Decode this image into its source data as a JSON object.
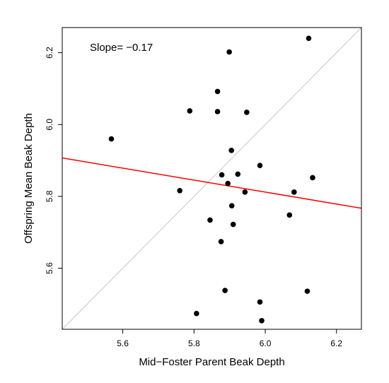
{
  "chart_data": {
    "type": "scatter",
    "title": "",
    "xlabel": "Mid−Foster Parent Beak Depth",
    "ylabel": "Offspring Mean Beak Depth",
    "xlim": [
      5.43,
      6.27
    ],
    "ylim": [
      5.43,
      6.27
    ],
    "xticks": [
      5.6,
      5.8,
      6.0,
      6.2
    ],
    "yticks": [
      5.6,
      5.8,
      6.0,
      6.2
    ],
    "xtick_labels": [
      "5.6",
      "5.8",
      "6.0",
      "6.2"
    ],
    "ytick_labels": [
      "5.6",
      "5.8",
      "6.0",
      "6.2"
    ],
    "annotation": "Slope= −0.17",
    "grid": false,
    "points": [
      {
        "x": 5.568,
        "y": 5.96
      },
      {
        "x": 5.76,
        "y": 5.816
      },
      {
        "x": 5.788,
        "y": 6.038
      },
      {
        "x": 5.807,
        "y": 5.474
      },
      {
        "x": 5.845,
        "y": 5.734
      },
      {
        "x": 5.866,
        "y": 6.092
      },
      {
        "x": 5.866,
        "y": 6.036
      },
      {
        "x": 5.876,
        "y": 5.674
      },
      {
        "x": 5.878,
        "y": 5.86
      },
      {
        "x": 5.887,
        "y": 5.538
      },
      {
        "x": 5.895,
        "y": 5.836
      },
      {
        "x": 5.899,
        "y": 6.202
      },
      {
        "x": 5.905,
        "y": 5.928
      },
      {
        "x": 5.906,
        "y": 5.774
      },
      {
        "x": 5.91,
        "y": 5.722
      },
      {
        "x": 5.923,
        "y": 5.862
      },
      {
        "x": 5.943,
        "y": 5.812
      },
      {
        "x": 5.948,
        "y": 6.034
      },
      {
        "x": 5.985,
        "y": 5.886
      },
      {
        "x": 5.985,
        "y": 5.506
      },
      {
        "x": 5.99,
        "y": 5.454
      },
      {
        "x": 6.068,
        "y": 5.748
      },
      {
        "x": 6.081,
        "y": 5.812
      },
      {
        "x": 6.118,
        "y": 5.536
      },
      {
        "x": 6.122,
        "y": 6.24
      },
      {
        "x": 6.133,
        "y": 5.852
      }
    ],
    "regression_line": {
      "slope": -0.17,
      "color": "#ff0000",
      "from": {
        "x": 5.43,
        "y": 5.907
      },
      "to": {
        "x": 6.27,
        "y": 5.767
      }
    },
    "identity_line": {
      "color": "#c8c8c8"
    },
    "point_color": "#000000"
  }
}
